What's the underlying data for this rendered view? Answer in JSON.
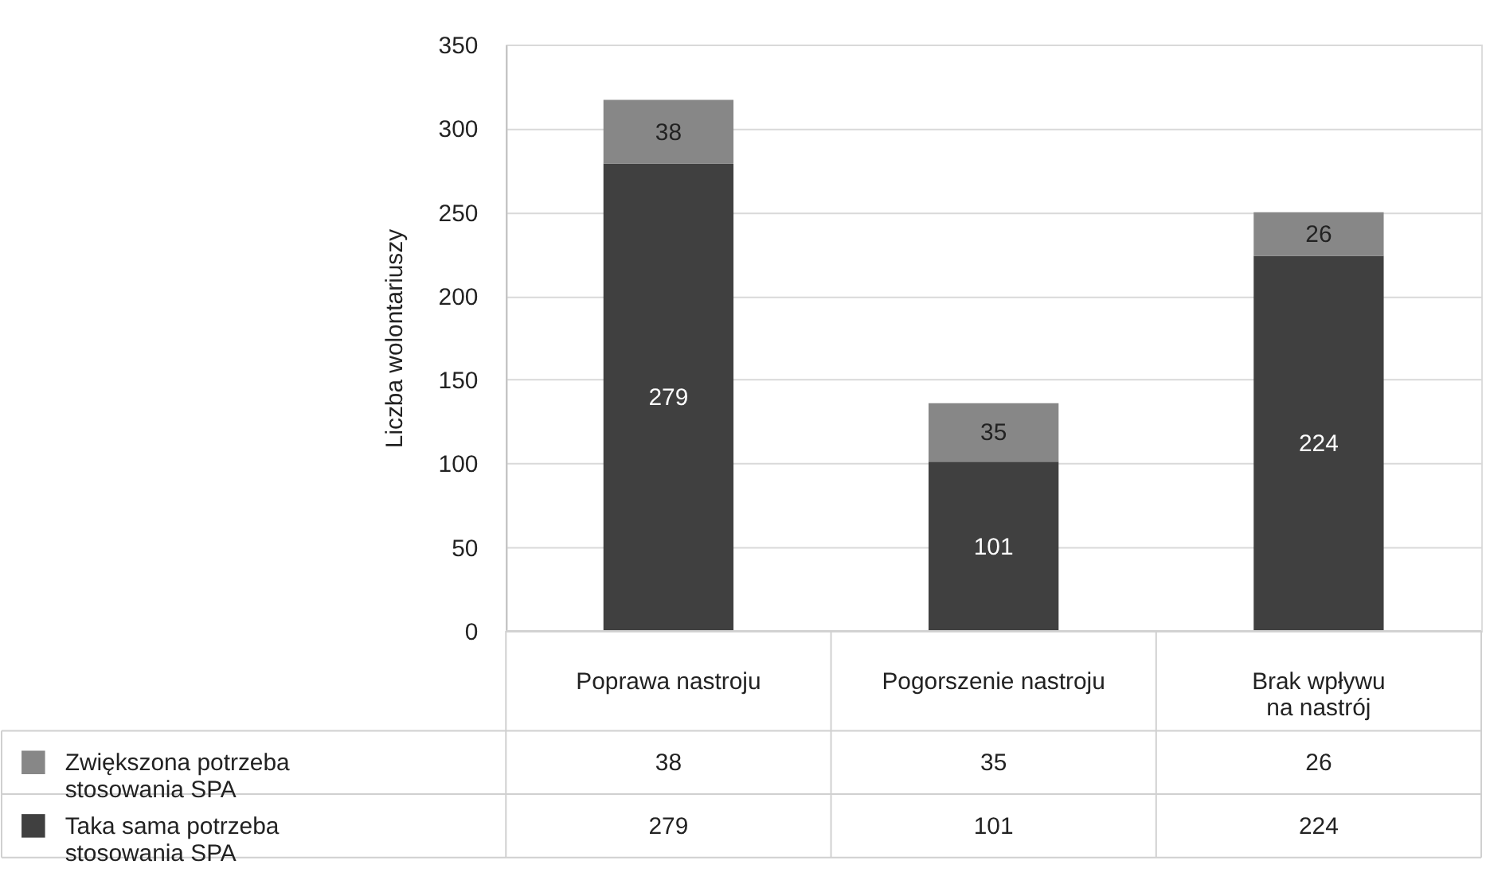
{
  "chart_data": {
    "type": "bar",
    "stacked": true,
    "ylabel": "Liczba wolontariuszy",
    "categories": [
      "Poprawa nastroju",
      "Pogorszenie nastroju",
      "Brak wpływu\nna nastrój"
    ],
    "series": [
      {
        "name": "Taka sama potrzeba\nstosowania SPA",
        "color": "#404040",
        "values": [
          279,
          101,
          224
        ],
        "value_labels": [
          "279",
          "101",
          "224"
        ]
      },
      {
        "name": "Zwiększona potrzeba\nstosowania SPA",
        "color": "#878787",
        "values": [
          38,
          35,
          26
        ],
        "value_labels": [
          "38",
          "35",
          "26"
        ]
      }
    ],
    "ylim": [
      0,
      350
    ],
    "yticks": [
      0,
      50,
      100,
      150,
      200,
      250,
      300,
      350
    ],
    "grid": "y",
    "legend": "bottom left",
    "annotations": [
      "38",
      "35",
      "26",
      "279",
      "101",
      "224"
    ]
  }
}
